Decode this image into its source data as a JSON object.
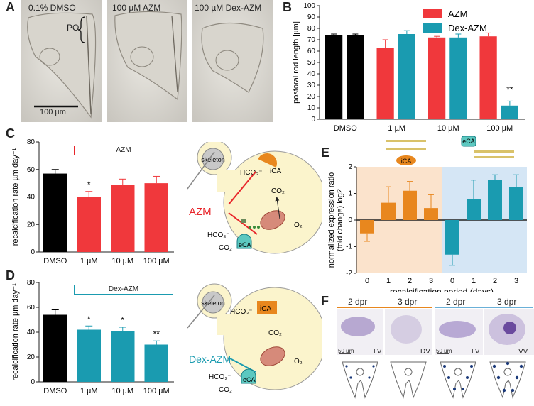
{
  "panel_letters": {
    "a": "A",
    "b": "B",
    "c": "C",
    "d": "D",
    "e": "E",
    "f": "F"
  },
  "panel_a": {
    "labels": [
      "0.1% DMSO",
      "100 µM AZM",
      "100 µM Dex-AZM"
    ],
    "po_label": "PO",
    "scale_label": "100 µm"
  },
  "panel_c_bracket": "AZM",
  "panel_d_bracket": "Dex-AZM",
  "diagram": {
    "skeleton": "skeleton",
    "ica": "iCA",
    "eca": "eCA",
    "hco3": "HCO₃⁻",
    "co2": "CO₂",
    "o2": "O₂",
    "drug_azm": "AZM",
    "drug_dex": "Dex-AZM",
    "colors": {
      "azm": "#e8252a",
      "dex": "#1a9bb0",
      "cell": "#fbf4cc",
      "ica": "#e8871e",
      "eca": "#5cc8c0"
    }
  },
  "panel_f": {
    "headers": [
      "2 dpr",
      "3 dpr",
      "2 dpr",
      "3 dpr"
    ],
    "views": [
      "LV",
      "DV",
      "LV",
      "VV"
    ],
    "scale": "50 µm",
    "colors": {
      "left_rule": "#e8871e",
      "right_rule": "#6ab0d8"
    }
  },
  "chart_data": [
    {
      "id": "B",
      "type": "bar",
      "categories": [
        "DMSO",
        "1 µM",
        "10 µM",
        "100 µM"
      ],
      "series": [
        {
          "name": "AZM",
          "color": "#f0383c",
          "values": [
            74,
            63,
            72,
            73
          ],
          "err": [
            1,
            7,
            1,
            3
          ]
        },
        {
          "name": "Dex-AZM",
          "color": "#1a9bb0",
          "values": [
            74,
            75,
            72,
            12
          ],
          "err": [
            1,
            3,
            3,
            4
          ]
        }
      ],
      "control_color": "#000000",
      "ylabel": "postoral rod length [µm]",
      "ylim": [
        0,
        100
      ],
      "yticks": [
        0,
        10,
        20,
        30,
        40,
        50,
        60,
        70,
        80,
        90,
        100
      ],
      "annotations": [
        {
          "category": "100 µM",
          "series": "Dex-AZM",
          "text": "**"
        }
      ]
    },
    {
      "id": "C",
      "type": "bar",
      "categories": [
        "DMSO",
        "1 µM",
        "10 µM",
        "100 µM"
      ],
      "values": [
        57,
        40,
        49,
        50
      ],
      "err": [
        3,
        4,
        4,
        5
      ],
      "colors": [
        "#000000",
        "#f0383c",
        "#f0383c",
        "#f0383c"
      ],
      "ylabel": "recalcification rate µm day⁻¹",
      "ylim": [
        0,
        80
      ],
      "yticks": [
        0,
        20,
        40,
        60,
        80
      ],
      "annotations": [
        {
          "category": "1 µM",
          "text": "*"
        }
      ]
    },
    {
      "id": "D",
      "type": "bar",
      "categories": [
        "DMSO",
        "1 µM",
        "10 µM",
        "100 µM"
      ],
      "values": [
        54,
        42,
        41,
        30
      ],
      "err": [
        4,
        3,
        3,
        3
      ],
      "colors": [
        "#000000",
        "#1a9bb0",
        "#1a9bb0",
        "#1a9bb0"
      ],
      "ylabel": "recalcification rate µm day⁻¹",
      "ylim": [
        0,
        80
      ],
      "yticks": [
        0,
        20,
        40,
        60,
        80
      ],
      "annotations": [
        {
          "category": "1 µM",
          "text": "*"
        },
        {
          "category": "10 µM",
          "text": "*"
        },
        {
          "category": "100 µM",
          "text": "**"
        }
      ]
    },
    {
      "id": "E",
      "type": "bar",
      "categories": [
        "0",
        "1",
        "2",
        "3",
        "0",
        "1",
        "2",
        "3"
      ],
      "groups": [
        {
          "name": "iCA",
          "color": "#e8871e",
          "bg": "#fbe3cc",
          "values": [
            -0.5,
            0.65,
            1.1,
            0.45
          ],
          "err": [
            0.3,
            0.6,
            0.35,
            0.5
          ]
        },
        {
          "name": "eCA",
          "color": "#1a9bb0",
          "bg": "#d5e6f5",
          "values": [
            -1.3,
            0.8,
            1.5,
            1.25
          ],
          "err": [
            0.4,
            0.7,
            0.2,
            0.45
          ]
        }
      ],
      "xlabel": "recalcification period (days)",
      "ylabel": "normalized expression ratio (fold change) log2",
      "ylim": [
        -2,
        2
      ],
      "yticks": [
        -2,
        -1,
        0,
        1,
        2
      ]
    }
  ]
}
